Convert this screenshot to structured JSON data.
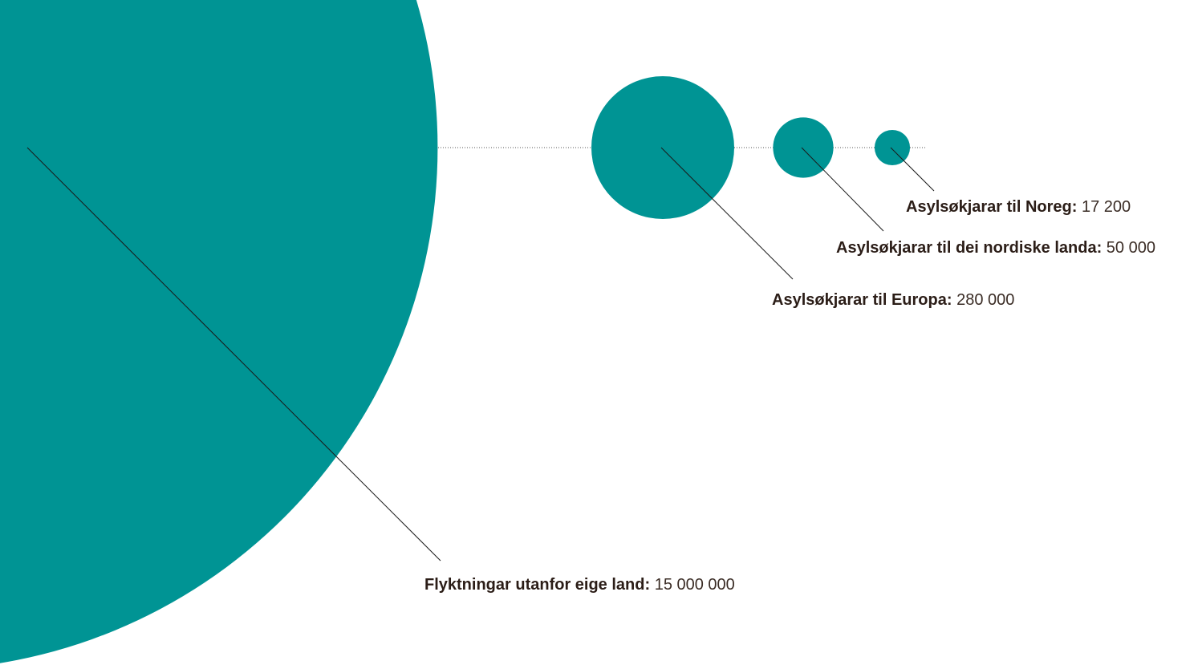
{
  "chart_data": {
    "type": "bubble",
    "color": "#009494",
    "line_color": "#1a1a1a",
    "baseline_color": "#555555",
    "items": [
      {
        "name": "Flyktningar utanfor eige land:",
        "value_text": "15 000 000",
        "value": 15000000
      },
      {
        "name": "Asylsøkjarar til Europa:",
        "value_text": "280 000",
        "value": 280000
      },
      {
        "name": "Asylsøkjarar til dei nordiske landa:",
        "value_text": "50 000",
        "value": 50000
      },
      {
        "name": "Asylsøkjarar til Noreg:",
        "value_text": "17 200",
        "value": 17200
      }
    ]
  }
}
